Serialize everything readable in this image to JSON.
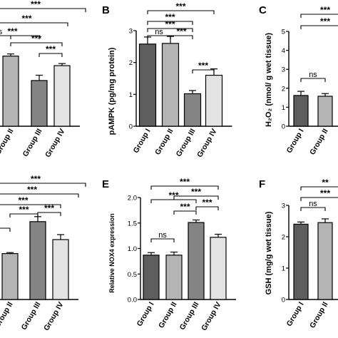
{
  "colors": {
    "group_i": "#5e5e5e",
    "group_ii": "#b4b4b4",
    "group_iii": "#848484",
    "group_iv": "#e3e3e3"
  },
  "chart_data": [
    {
      "id": "A",
      "type": "bar",
      "letter": "",
      "ylabel": "",
      "ylim": [
        0,
        1
      ],
      "categories": [
        "Group II",
        "Group III",
        "Group IV"
      ],
      "values": [
        0.66,
        0.43,
        0.57
      ],
      "errors": [
        0.02,
        0.05,
        0.02
      ],
      "ticks": [],
      "sig_labels": [
        "***",
        "***",
        "***",
        "ns",
        "***",
        "***"
      ]
    },
    {
      "id": "B",
      "type": "bar",
      "letter": "B",
      "ylabel": "pAMPK (pg/mg protein)",
      "ylim": [
        0,
        3
      ],
      "categories": [
        "Group I",
        "Group II",
        "Group III",
        "Group IV"
      ],
      "values": [
        2.58,
        2.6,
        1.02,
        1.6
      ],
      "errors": [
        0.22,
        0.22,
        0.1,
        0.2
      ],
      "ticks": [
        "0",
        "1",
        "2",
        "3"
      ],
      "sig_labels": [
        "***",
        "***",
        "ns",
        "***",
        "***",
        "***"
      ]
    },
    {
      "id": "C",
      "type": "bar",
      "letter": "C",
      "ylabel": "H₂O₂ (nmol/ g wet tissue)",
      "ylim": [
        0,
        5
      ],
      "categories": [
        "Group I",
        "Group II"
      ],
      "values": [
        1.62,
        1.58
      ],
      "errors": [
        0.22,
        0.14
      ],
      "ticks": [
        "0",
        "1",
        "2",
        "3",
        "4",
        "5"
      ],
      "sig_labels": [
        "***",
        "***",
        "ns"
      ]
    },
    {
      "id": "D",
      "type": "bar",
      "letter": "",
      "ylabel": "",
      "ylim": [
        0,
        1
      ],
      "categories": [
        "Group II",
        "Group III",
        "Group IV"
      ],
      "values": [
        0.46,
        0.78,
        0.6
      ],
      "errors": [
        0.01,
        0.05,
        0.05
      ],
      "ticks": [],
      "sig_labels": [
        "***",
        "***",
        "***",
        "***",
        "***",
        "*"
      ]
    },
    {
      "id": "E",
      "type": "bar",
      "letter": "E",
      "ylabel": "Relative NOX4 expression",
      "ylim": [
        0,
        2.0
      ],
      "categories": [
        "Group I",
        "Group II",
        "Group III",
        "Group IV"
      ],
      "values": [
        0.87,
        0.87,
        1.51,
        1.22
      ],
      "errors": [
        0.05,
        0.06,
        0.05,
        0.06
      ],
      "ticks": [
        "0.0",
        "0.5",
        "1.0",
        "1.5",
        "2.0"
      ],
      "sig_labels": [
        "***",
        "***",
        "***",
        "***",
        "***",
        "ns"
      ]
    },
    {
      "id": "F",
      "type": "bar",
      "letter": "F",
      "ylabel": "GSH (mg/g wet tissue)",
      "ylim": [
        0,
        3
      ],
      "categories": [
        "Group I",
        "Group II"
      ],
      "values": [
        2.4,
        2.45
      ],
      "errors": [
        0.07,
        0.12
      ],
      "ticks": [
        "0",
        "1",
        "2",
        "3"
      ],
      "sig_labels": [
        "**",
        "***",
        "ns"
      ]
    }
  ]
}
